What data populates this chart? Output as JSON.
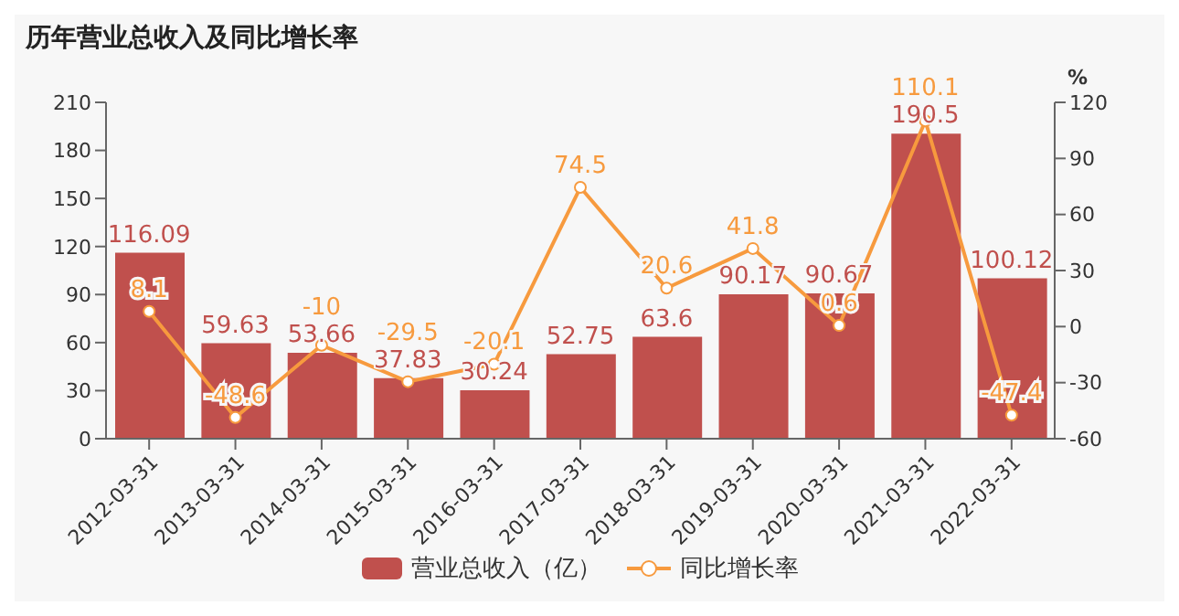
{
  "chart_data": {
    "type": "bar",
    "title": "历年营业总收入及同比增长率",
    "y2label": "%",
    "categories": [
      "2012-03-31",
      "2013-03-31",
      "2014-03-31",
      "2015-03-31",
      "2016-03-31",
      "2017-03-31",
      "2018-03-31",
      "2019-03-31",
      "2020-03-31",
      "2021-03-31",
      "2022-03-31"
    ],
    "series": [
      {
        "name": "营业总收入（亿）",
        "type": "bar",
        "color": "#c0504d",
        "values": [
          116.09,
          59.63,
          53.66,
          37.83,
          30.24,
          52.75,
          63.6,
          90.17,
          90.67,
          190.5,
          100.12
        ]
      },
      {
        "name": "同比增长率",
        "type": "line",
        "axis": "y2",
        "color": "#f79a3e",
        "values": [
          8.1,
          -48.6,
          -10,
          -29.5,
          -20.1,
          74.5,
          20.6,
          41.8,
          0.6,
          110.1,
          -47.4
        ]
      }
    ],
    "ylim": [
      0,
      210
    ],
    "yticks": [
      0,
      30,
      60,
      90,
      120,
      150,
      180,
      210
    ],
    "y2lim": [
      -60,
      120
    ],
    "y2ticks": [
      -60,
      -30,
      0,
      30,
      60,
      90,
      120
    ],
    "data_labels": true,
    "legend": "bottom",
    "marker": "circle",
    "grid": false
  }
}
